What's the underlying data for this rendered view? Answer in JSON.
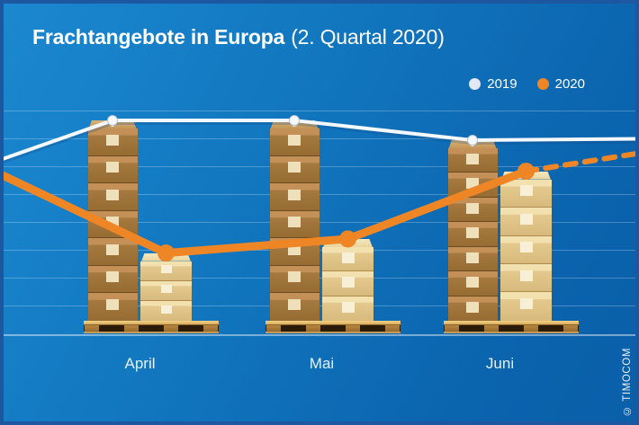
{
  "title": {
    "main": "Frachtangebote in Europa",
    "suffix": "(2. Quartal 2020)"
  },
  "legend": [
    {
      "label": "2019",
      "color": "#e4e7f4"
    },
    {
      "label": "2020",
      "color": "#ee8626"
    }
  ],
  "watermark": "© TIMOCOM",
  "colors": {
    "background_top": "#1b88d0",
    "background_bottom": "#0a5fa8",
    "frame": "#1d57a0",
    "orange_2020": "#ee8626",
    "white_2019": "#f4f7fc",
    "gridline": "rgba(255,255,255,0.25)"
  },
  "chart_data": {
    "type": "line",
    "subtype": "pictorial chart: cardboard-box stacks on pallets as bars, with trend lines",
    "title": "Frachtangebote in Europa (2. Quartal 2020)",
    "categories": [
      "April",
      "Mai",
      "Juni"
    ],
    "unit": "stack-box units (1 unit = 1 horizontal gridline interval)",
    "gridlines": {
      "horizontal": true,
      "count": 8
    },
    "legend_position": "top-right",
    "series": [
      {
        "name": "2019",
        "color": "#f4f7fc",
        "style": "solid",
        "marker": "white-pin",
        "values_units": [
          7.1,
          7.1,
          6.4
        ],
        "left_edge_start_units": 5.7,
        "right_edge_end_units": 6.45,
        "stack_boxes": [
          7,
          7,
          7
        ],
        "stack_color": "brown-cardboard"
      },
      {
        "name": "2020",
        "color": "#ee8626",
        "style": "solid, dashed projection after Juni",
        "marker": "orange-dot",
        "values_units": [
          2.4,
          2.9,
          5.3
        ],
        "left_edge_start_units": 5.2,
        "projection_end_units": 5.95,
        "stack_boxes": [
          3,
          3,
          5
        ],
        "stack_color": "light-tan-cardboard"
      }
    ]
  }
}
